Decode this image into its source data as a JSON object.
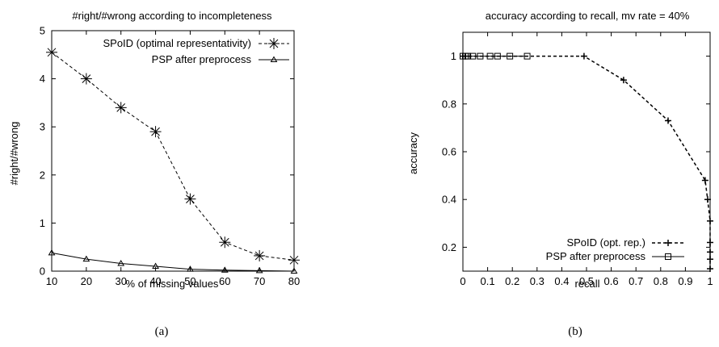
{
  "chart_data": [
    {
      "type": "line",
      "title": "#right/#wrong according to incompleteness",
      "xlabel": "% of missing values",
      "ylabel": "#right/#wrong",
      "xlim": [
        10,
        80
      ],
      "ylim": [
        0,
        5
      ],
      "xticks": [
        "10",
        "20",
        "30",
        "40",
        "50",
        "60",
        "70",
        "80"
      ],
      "yticks": [
        "0",
        "1",
        "2",
        "3",
        "4",
        "5"
      ],
      "grid": false,
      "legend_position": "top-right",
      "caption": "(a)",
      "series": [
        {
          "name": "SPoID (optimal representativity)",
          "marker": "asterisk",
          "dash": "dashed",
          "color": "#000000",
          "x": [
            10,
            20,
            30,
            40,
            50,
            60,
            70,
            80
          ],
          "y": [
            4.55,
            4.0,
            3.4,
            2.9,
            1.5,
            0.6,
            0.32,
            0.23
          ]
        },
        {
          "name": "PSP after preprocess",
          "marker": "triangle",
          "dash": "solid",
          "color": "#000000",
          "x": [
            10,
            20,
            30,
            40,
            50,
            60,
            70,
            80
          ],
          "y": [
            0.38,
            0.25,
            0.16,
            0.1,
            0.04,
            0.02,
            0.01,
            0.0
          ]
        }
      ]
    },
    {
      "type": "line",
      "title": "accuracy according to recall, mv rate = 40%",
      "xlabel": "recall",
      "ylabel": "accuracy",
      "xlim": [
        0,
        1
      ],
      "ylim": [
        0.1,
        1.1
      ],
      "xticks": [
        "0",
        "0.1",
        "0.2",
        "0.3",
        "0.4",
        "0.5",
        "0.6",
        "0.7",
        "0.8",
        "0.9",
        "1"
      ],
      "yticks": [
        "0.2",
        "0.4",
        "0.6",
        "0.8",
        "1"
      ],
      "grid": false,
      "legend_position": "bottom-right",
      "caption": "(b)",
      "series": [
        {
          "name": "SPoID (opt. rep.)",
          "marker": "plus",
          "dash": "dashed",
          "color": "#000000",
          "x": [
            0.0,
            0.01,
            0.49,
            0.65,
            0.83,
            0.98,
            0.99,
            1.0,
            1.0,
            1.0,
            1.0,
            1.0
          ],
          "y": [
            1.0,
            1.0,
            1.0,
            0.9,
            0.73,
            0.48,
            0.4,
            0.31,
            0.22,
            0.18,
            0.15,
            0.11
          ]
        },
        {
          "name": "PSP after preprocess",
          "marker": "square",
          "dash": "solid",
          "color": "#000000",
          "x": [
            0.0,
            0.01,
            0.02,
            0.04,
            0.07,
            0.11,
            0.14,
            0.19,
            0.26
          ],
          "y": [
            1.0,
            1.0,
            1.0,
            1.0,
            1.0,
            1.0,
            1.0,
            1.0,
            1.0
          ]
        }
      ]
    }
  ]
}
